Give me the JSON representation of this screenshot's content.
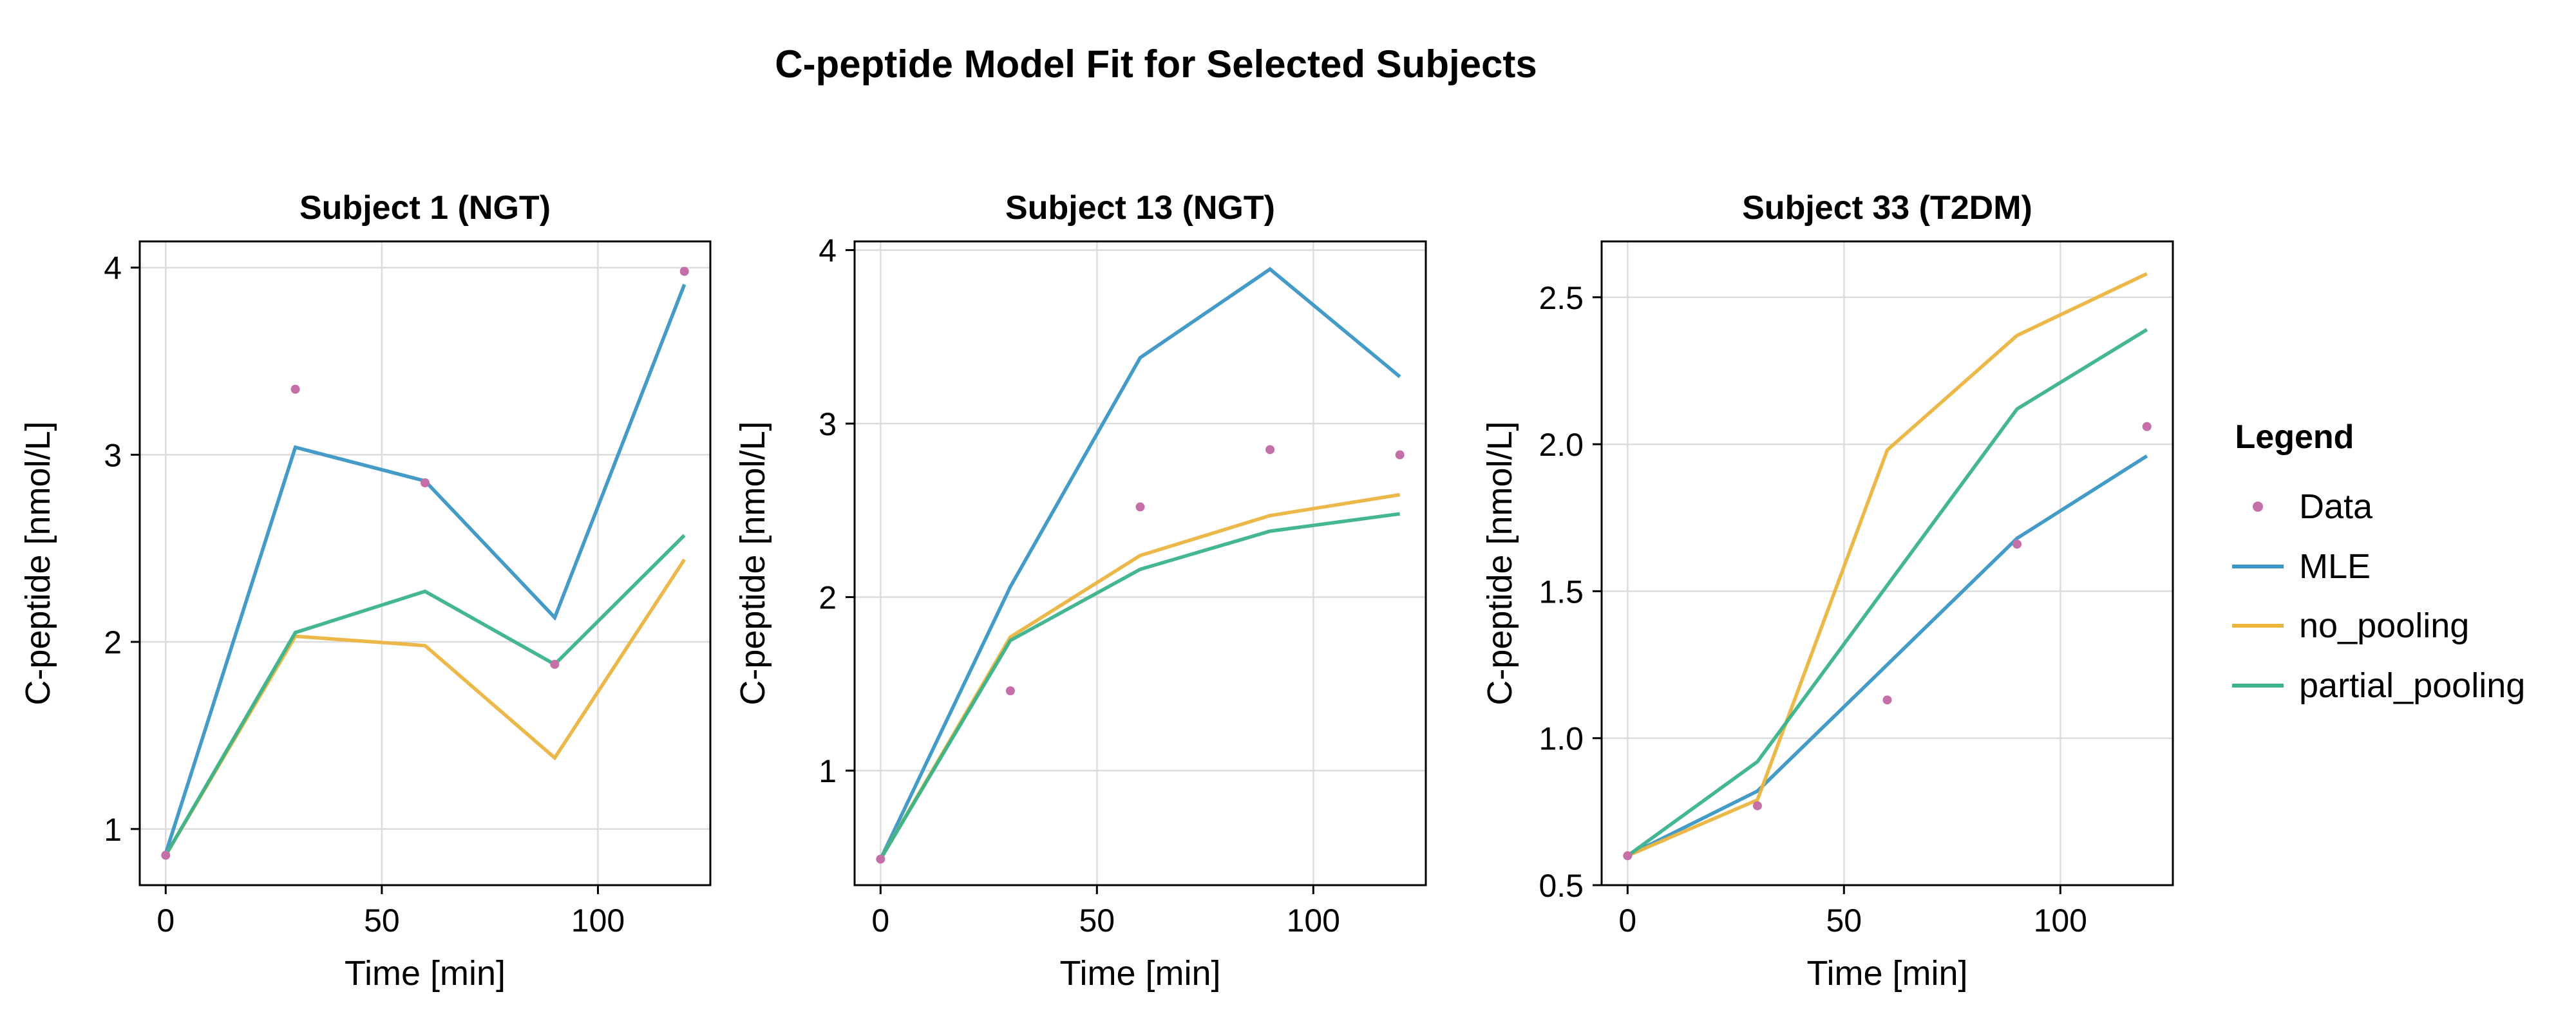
{
  "figure_title": "C-peptide Model Fit for Selected Subjects",
  "legend": {
    "title": "Legend",
    "entries": [
      {
        "label": "Data",
        "kind": "marker",
        "color": "#c56fa8"
      },
      {
        "label": "MLE",
        "kind": "line",
        "color": "#3a96c4"
      },
      {
        "label": "no_pooling",
        "kind": "line",
        "color": "#eab43f"
      },
      {
        "label": "partial_pooling",
        "kind": "line",
        "color": "#3ab28c"
      }
    ]
  },
  "chart_data": [
    {
      "type": "line",
      "title": "Subject 1 (NGT)",
      "xlabel": "Time [min]",
      "ylabel": "C-peptide [nmol/L]",
      "xlim": [
        -6,
        126
      ],
      "ylim": [
        0.7,
        4.14
      ],
      "xticks": [
        0,
        50,
        100
      ],
      "yticks": [
        1,
        2,
        3,
        4
      ],
      "ytick_labels": [
        "1",
        "2",
        "3",
        "4"
      ],
      "grid": true,
      "x": [
        0,
        30,
        60,
        90,
        120
      ],
      "data": [
        0.86,
        3.35,
        2.85,
        1.88,
        3.98
      ],
      "series": [
        {
          "name": "MLE",
          "values": [
            0.87,
            3.04,
            2.86,
            2.13,
            3.91
          ]
        },
        {
          "name": "no_pooling",
          "values": [
            0.86,
            2.03,
            1.98,
            1.38,
            2.44
          ]
        },
        {
          "name": "partial_pooling",
          "values": [
            0.86,
            2.05,
            2.27,
            1.88,
            2.57
          ]
        }
      ]
    },
    {
      "type": "line",
      "title": "Subject 13 (NGT)",
      "xlabel": "Time [min]",
      "ylabel": "C-peptide [nmol/L]",
      "xlim": [
        -6,
        126
      ],
      "ylim": [
        0.34,
        4.05
      ],
      "xticks": [
        0,
        50,
        100
      ],
      "yticks": [
        1,
        2,
        3,
        4
      ],
      "ytick_labels": [
        "1",
        "2",
        "3",
        "4"
      ],
      "grid": true,
      "x": [
        0,
        30,
        60,
        90,
        120
      ],
      "data": [
        0.49,
        1.46,
        2.52,
        2.85,
        2.82
      ],
      "series": [
        {
          "name": "MLE",
          "values": [
            0.49,
            2.06,
            3.38,
            3.89,
            3.27
          ]
        },
        {
          "name": "no_pooling",
          "values": [
            0.49,
            1.77,
            2.24,
            2.47,
            2.59
          ]
        },
        {
          "name": "partial_pooling",
          "values": [
            0.49,
            1.75,
            2.16,
            2.38,
            2.48
          ]
        }
      ]
    },
    {
      "type": "line",
      "title": "Subject 33 (T2DM)",
      "xlabel": "Time [min]",
      "ylabel": "C-peptide [nmol/L]",
      "xlim": [
        -6,
        126
      ],
      "ylim": [
        0.5,
        2.69
      ],
      "xticks": [
        0,
        50,
        100
      ],
      "yticks": [
        0.5,
        1.0,
        1.5,
        2.0,
        2.5
      ],
      "ytick_labels": [
        "0.5",
        "1.0",
        "1.5",
        "2.0",
        "2.5"
      ],
      "grid": true,
      "x": [
        0,
        30,
        60,
        90,
        120
      ],
      "data": [
        0.6,
        0.77,
        1.13,
        1.66,
        2.06
      ],
      "series": [
        {
          "name": "MLE",
          "values": [
            0.6,
            0.82,
            1.25,
            1.68,
            1.96
          ]
        },
        {
          "name": "no_pooling",
          "values": [
            0.6,
            0.79,
            1.98,
            2.37,
            2.58
          ]
        },
        {
          "name": "partial_pooling",
          "values": [
            0.6,
            0.92,
            1.52,
            2.12,
            2.39
          ]
        }
      ]
    }
  ]
}
